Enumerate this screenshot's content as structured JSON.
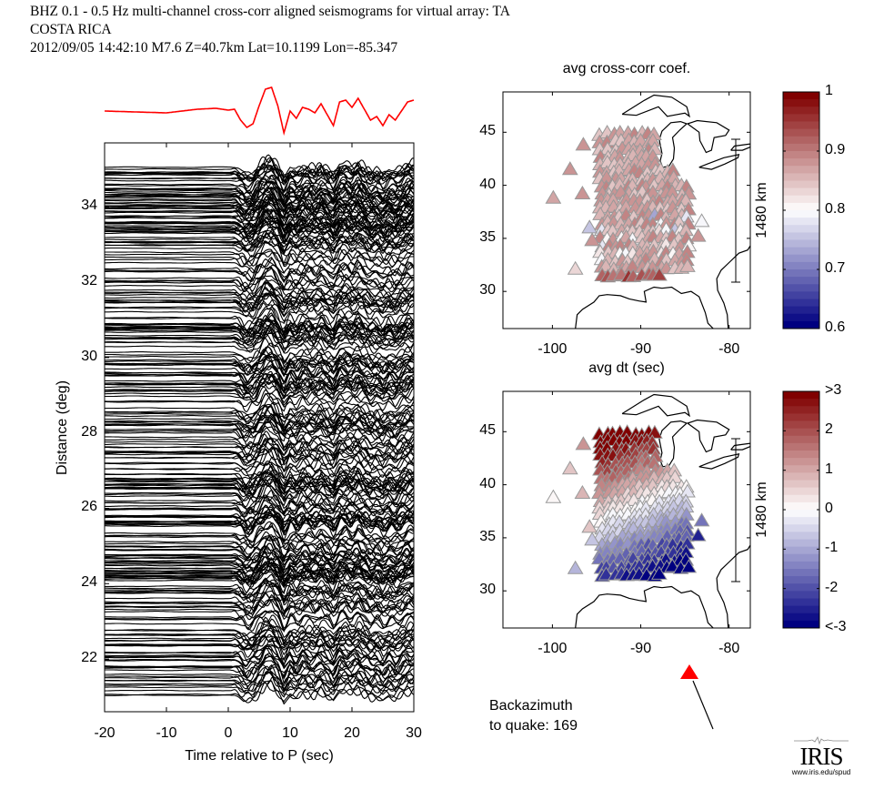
{
  "header": {
    "line1": "BHZ  0.1 - 0.5 Hz  multi-channel cross-corr aligned seismograms for virtual array: TA",
    "line2": "COSTA RICA",
    "line3": "2012/09/05  14:42:10  M7.6  Z=40.7km Lat=10.1199 Lon=-85.347"
  },
  "annotations": {
    "backazimuth_line1": "Backazimuth",
    "backazimuth_line2": "to quake:  169",
    "backazimuth_deg": 169,
    "logo_text": "IRIS",
    "logo_url": "www.iris.edu/spud"
  },
  "colors": {
    "stack_trace": "#ff0000",
    "traces": "#000000",
    "arrow_marker": "#ff0000"
  },
  "chart_data": [
    {
      "type": "line",
      "id": "record-section",
      "title": "",
      "xlabel": "Time relative to P (sec)",
      "ylabel": "Distance (deg)",
      "xlim": [
        -20,
        30
      ],
      "ylim": [
        20.6,
        35.7
      ],
      "xticks": [
        "-20",
        "-10",
        "0",
        "10",
        "20",
        "30"
      ],
      "yticks": [
        "22",
        "24",
        "26",
        "28",
        "30",
        "32",
        "34"
      ],
      "xtick_values": [
        -20,
        -10,
        0,
        10,
        20,
        30
      ],
      "ytick_values": [
        22,
        24,
        26,
        28,
        30,
        32,
        34
      ],
      "series_description": "~300 aligned seismogram traces plotted at station distance (deg), distances ranging ~21.0 to ~35.1 deg; P arrival at 0 s, main pulse ~7-9 s",
      "distance_range": [
        21.0,
        35.1
      ],
      "trace_count_approx": 300,
      "stack": {
        "name": "stacked trace (red)",
        "x": [
          -20,
          -15,
          -10,
          -5,
          -2,
          0,
          1,
          2,
          3,
          4,
          5,
          6,
          7,
          8,
          9,
          10,
          11,
          12,
          13,
          14,
          15,
          16,
          17,
          18,
          19,
          20,
          21,
          22,
          23,
          24,
          25,
          26,
          27,
          28,
          29,
          30
        ],
        "y": [
          0,
          -0.05,
          -0.1,
          0.1,
          0.15,
          0.05,
          0.1,
          -0.5,
          -0.9,
          -0.7,
          0.3,
          1.2,
          1.3,
          0.3,
          -1.2,
          0.0,
          -0.4,
          0.2,
          0.1,
          -0.1,
          0.4,
          -0.2,
          -0.8,
          0.5,
          0.6,
          0.2,
          0.7,
          0.1,
          -0.5,
          -0.3,
          -0.8,
          -0.2,
          -0.5,
          0.0,
          0.5,
          0.6
        ]
      }
    },
    {
      "type": "scatter",
      "id": "map-cc",
      "title": "avg cross-corr coef.",
      "xlabel": "",
      "ylabel": "",
      "xlim": [
        -105.6,
        -77.6
      ],
      "ylim": [
        26.5,
        48.8
      ],
      "xticks": [
        "-100",
        "-90",
        "-80"
      ],
      "xtick_values": [
        -100,
        -90,
        -80
      ],
      "yticks": [
        "30",
        "35",
        "40",
        "45"
      ],
      "ytick_values": [
        30,
        35,
        40,
        45
      ],
      "scale_bar_label": "1480 km",
      "colorbar": {
        "min": 0.6,
        "max": 1,
        "ticks": [
          "0.6",
          "0.7",
          "0.8",
          "0.9",
          "1"
        ],
        "tick_values": [
          0.6,
          0.7,
          0.8,
          0.9,
          1.0
        ],
        "colormap": "blue-white-red"
      },
      "marker": "triangle",
      "outlier_stations": [
        {
          "lon": -96.5,
          "lat": 43.8,
          "v": 0.88
        },
        {
          "lon": -98.0,
          "lat": 41.5,
          "v": 0.89
        },
        {
          "lon": -99.9,
          "lat": 38.8,
          "v": 0.87
        },
        {
          "lon": -96.6,
          "lat": 39.2,
          "v": 0.89
        },
        {
          "lon": -95.8,
          "lat": 36.0,
          "v": 0.76
        },
        {
          "lon": -95.5,
          "lat": 34.8,
          "v": 0.89
        },
        {
          "lon": -97.4,
          "lat": 32.1,
          "v": 0.83
        },
        {
          "lon": -83.1,
          "lat": 36.6,
          "v": 0.79
        },
        {
          "lon": -83.5,
          "lat": 35.2,
          "v": 0.89
        }
      ],
      "grid_region": {
        "lon_range": [
          -94.5,
          -84.5
        ],
        "lat_range": [
          30.8,
          44.8
        ],
        "value_note": "mostly 0.82-0.92 (light red), darker red 0.93-0.96 along southern edge near 31 N, some bluish 0.72-0.78 near 36-37 N, -88 to -86"
      }
    },
    {
      "type": "scatter",
      "id": "map-dt",
      "title": "avg dt (sec)",
      "xlabel": "",
      "ylabel": "",
      "xlim": [
        -105.6,
        -77.6
      ],
      "ylim": [
        26.5,
        48.8
      ],
      "xticks": [
        "-100",
        "-90",
        "-80"
      ],
      "xtick_values": [
        -100,
        -90,
        -80
      ],
      "yticks": [
        "30",
        "35",
        "40",
        "45"
      ],
      "ytick_values": [
        30,
        35,
        40,
        45
      ],
      "scale_bar_label": "1480 km",
      "colorbar": {
        "min": -3,
        "max": 3,
        "ticks": [
          "<-3",
          "-2",
          "-1",
          "0",
          "1",
          "2",
          ">3"
        ],
        "tick_values": [
          -3,
          -2,
          -1,
          0,
          1,
          2,
          3
        ],
        "colormap": "blue-white-red"
      },
      "marker": "triangle",
      "outlier_stations": [
        {
          "lon": -96.5,
          "lat": 43.8,
          "v": 1.3
        },
        {
          "lon": -98.0,
          "lat": 41.5,
          "v": 0.6
        },
        {
          "lon": -99.9,
          "lat": 38.8,
          "v": 0.0
        },
        {
          "lon": -96.6,
          "lat": 39.2,
          "v": 0.9
        },
        {
          "lon": -95.8,
          "lat": 36.0,
          "v": 0.6
        },
        {
          "lon": -95.5,
          "lat": 34.8,
          "v": -0.6
        },
        {
          "lon": -97.4,
          "lat": 32.1,
          "v": -0.9
        },
        {
          "lon": -83.1,
          "lat": 36.6,
          "v": -1.6
        },
        {
          "lon": -83.5,
          "lat": 35.2,
          "v": -2.6
        }
      ],
      "grid_region": {
        "lon_range": [
          -94.5,
          -84.5
        ],
        "lat_range": [
          30.8,
          44.8
        ],
        "value_note": "gradient from ~+1.3 s in north (44 N) through 0 near 38 N to ~-3 s in southeast (31 N, -88 to -85)"
      }
    }
  ]
}
